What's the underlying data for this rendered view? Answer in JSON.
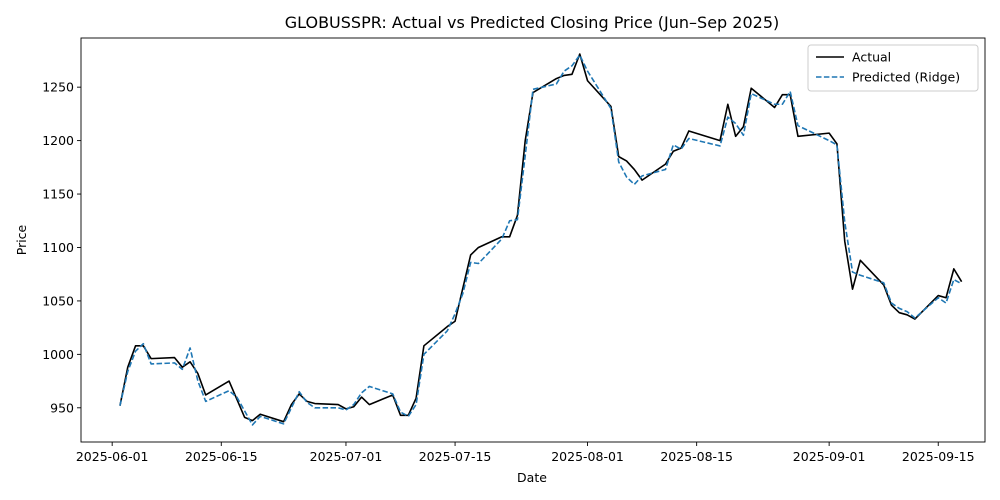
{
  "chart_data": {
    "type": "line",
    "title": "GLOBUSSPR: Actual vs Predicted Closing Price (Jun–Sep 2025)",
    "xlabel": "Date",
    "ylabel": "Price",
    "x_axis": {
      "type": "date",
      "range": [
        "2025-05-28",
        "2025-09-21"
      ],
      "ticks": [
        "2025-06-01",
        "2025-06-15",
        "2025-07-01",
        "2025-07-15",
        "2025-08-01",
        "2025-08-15",
        "2025-09-01",
        "2025-09-15"
      ]
    },
    "y_axis": {
      "range": [
        918,
        1296
      ],
      "ticks": [
        950,
        1000,
        1050,
        1100,
        1150,
        1200,
        1250
      ]
    },
    "grid": false,
    "legend": "top-right",
    "series": [
      {
        "name": "Actual",
        "color": "#000000",
        "style": "solid",
        "points": [
          [
            "2025-06-02",
            952
          ],
          [
            "2025-06-03",
            988
          ],
          [
            "2025-06-04",
            1008
          ],
          [
            "2025-06-05",
            1008
          ],
          [
            "2025-06-06",
            996
          ],
          [
            "2025-06-09",
            997
          ],
          [
            "2025-06-10",
            988
          ],
          [
            "2025-06-11",
            993
          ],
          [
            "2025-06-12",
            982
          ],
          [
            "2025-06-13",
            962
          ],
          [
            "2025-06-16",
            975
          ],
          [
            "2025-06-18",
            941
          ],
          [
            "2025-06-19",
            938
          ],
          [
            "2025-06-20",
            944
          ],
          [
            "2025-06-23",
            937
          ],
          [
            "2025-06-24",
            953
          ],
          [
            "2025-06-25",
            963
          ],
          [
            "2025-06-26",
            956
          ],
          [
            "2025-06-27",
            954
          ],
          [
            "2025-06-30",
            953
          ],
          [
            "2025-07-01",
            949
          ],
          [
            "2025-07-02",
            951
          ],
          [
            "2025-07-03",
            960
          ],
          [
            "2025-07-04",
            953
          ],
          [
            "2025-07-07",
            962
          ],
          [
            "2025-07-08",
            943
          ],
          [
            "2025-07-09",
            943
          ],
          [
            "2025-07-10",
            959
          ],
          [
            "2025-07-11",
            1008
          ],
          [
            "2025-07-14",
            1026
          ],
          [
            "2025-07-15",
            1031
          ],
          [
            "2025-07-16",
            1062
          ],
          [
            "2025-07-17",
            1093
          ],
          [
            "2025-07-18",
            1100
          ],
          [
            "2025-07-21",
            1110
          ],
          [
            "2025-07-22",
            1110
          ],
          [
            "2025-07-23",
            1130
          ],
          [
            "2025-07-24",
            1200
          ],
          [
            "2025-07-25",
            1245
          ],
          [
            "2025-07-28",
            1258
          ],
          [
            "2025-07-29",
            1261
          ],
          [
            "2025-07-30",
            1262
          ],
          [
            "2025-07-31",
            1281
          ],
          [
            "2025-08-01",
            1256
          ],
          [
            "2025-08-04",
            1232
          ],
          [
            "2025-08-05",
            1185
          ],
          [
            "2025-08-06",
            1181
          ],
          [
            "2025-08-07",
            1173
          ],
          [
            "2025-08-08",
            1163
          ],
          [
            "2025-08-11",
            1178
          ],
          [
            "2025-08-12",
            1190
          ],
          [
            "2025-08-13",
            1193
          ],
          [
            "2025-08-14",
            1209
          ],
          [
            "2025-08-18",
            1200
          ],
          [
            "2025-08-19",
            1234
          ],
          [
            "2025-08-20",
            1204
          ],
          [
            "2025-08-21",
            1213
          ],
          [
            "2025-08-22",
            1249
          ],
          [
            "2025-08-25",
            1231
          ],
          [
            "2025-08-26",
            1243
          ],
          [
            "2025-08-27",
            1243
          ],
          [
            "2025-08-28",
            1204
          ],
          [
            "2025-09-01",
            1207
          ],
          [
            "2025-09-02",
            1197
          ],
          [
            "2025-09-03",
            1106
          ],
          [
            "2025-09-04",
            1061
          ],
          [
            "2025-09-05",
            1088
          ],
          [
            "2025-09-08",
            1065
          ],
          [
            "2025-09-09",
            1046
          ],
          [
            "2025-09-10",
            1039
          ],
          [
            "2025-09-11",
            1037
          ],
          [
            "2025-09-12",
            1033
          ],
          [
            "2025-09-15",
            1055
          ],
          [
            "2025-09-16",
            1053
          ],
          [
            "2025-09-17",
            1080
          ],
          [
            "2025-09-18",
            1068
          ]
        ]
      },
      {
        "name": "Predicted (Ridge)",
        "color": "#1f77b4",
        "style": "dashed",
        "points": [
          [
            "2025-06-02",
            952
          ],
          [
            "2025-06-03",
            984
          ],
          [
            "2025-06-04",
            1003
          ],
          [
            "2025-06-05",
            1010
          ],
          [
            "2025-06-06",
            991
          ],
          [
            "2025-06-09",
            992
          ],
          [
            "2025-06-10",
            986
          ],
          [
            "2025-06-11",
            1006
          ],
          [
            "2025-06-12",
            975
          ],
          [
            "2025-06-13",
            956
          ],
          [
            "2025-06-16",
            966
          ],
          [
            "2025-06-17",
            960
          ],
          [
            "2025-06-18",
            947
          ],
          [
            "2025-06-19",
            934
          ],
          [
            "2025-06-20",
            942
          ],
          [
            "2025-06-23",
            935
          ],
          [
            "2025-06-24",
            950
          ],
          [
            "2025-06-25",
            965
          ],
          [
            "2025-06-26",
            955
          ],
          [
            "2025-06-27",
            950
          ],
          [
            "2025-06-30",
            950
          ],
          [
            "2025-07-01",
            948
          ],
          [
            "2025-07-02",
            953
          ],
          [
            "2025-07-03",
            964
          ],
          [
            "2025-07-04",
            970
          ],
          [
            "2025-07-07",
            963
          ],
          [
            "2025-07-08",
            946
          ],
          [
            "2025-07-09",
            942
          ],
          [
            "2025-07-10",
            953
          ],
          [
            "2025-07-11",
            1000
          ],
          [
            "2025-07-14",
            1022
          ],
          [
            "2025-07-15",
            1038
          ],
          [
            "2025-07-16",
            1057
          ],
          [
            "2025-07-17",
            1086
          ],
          [
            "2025-07-18",
            1085
          ],
          [
            "2025-07-21",
            1108
          ],
          [
            "2025-07-22",
            1125
          ],
          [
            "2025-07-23",
            1126
          ],
          [
            "2025-07-24",
            1186
          ],
          [
            "2025-07-25",
            1248
          ],
          [
            "2025-07-28",
            1253
          ],
          [
            "2025-07-29",
            1265
          ],
          [
            "2025-07-30",
            1270
          ],
          [
            "2025-07-31",
            1280
          ],
          [
            "2025-08-01",
            1265
          ],
          [
            "2025-08-04",
            1230
          ],
          [
            "2025-08-05",
            1180
          ],
          [
            "2025-08-06",
            1166
          ],
          [
            "2025-08-07",
            1159
          ],
          [
            "2025-08-08",
            1167
          ],
          [
            "2025-08-11",
            1173
          ],
          [
            "2025-08-12",
            1196
          ],
          [
            "2025-08-13",
            1192
          ],
          [
            "2025-08-14",
            1202
          ],
          [
            "2025-08-18",
            1195
          ],
          [
            "2025-08-19",
            1222
          ],
          [
            "2025-08-20",
            1216
          ],
          [
            "2025-08-21",
            1205
          ],
          [
            "2025-08-22",
            1244
          ],
          [
            "2025-08-25",
            1234
          ],
          [
            "2025-08-26",
            1234
          ],
          [
            "2025-08-27",
            1246
          ],
          [
            "2025-08-28",
            1214
          ],
          [
            "2025-09-01",
            1200
          ],
          [
            "2025-09-02",
            1196
          ],
          [
            "2025-09-03",
            1124
          ],
          [
            "2025-09-04",
            1077
          ],
          [
            "2025-09-05",
            1074
          ],
          [
            "2025-09-08",
            1067
          ],
          [
            "2025-09-09",
            1048
          ],
          [
            "2025-09-10",
            1043
          ],
          [
            "2025-09-11",
            1040
          ],
          [
            "2025-09-12",
            1034
          ],
          [
            "2025-09-15",
            1053
          ],
          [
            "2025-09-16",
            1048
          ],
          [
            "2025-09-17",
            1070
          ],
          [
            "2025-09-18",
            1066
          ]
        ]
      }
    ]
  }
}
